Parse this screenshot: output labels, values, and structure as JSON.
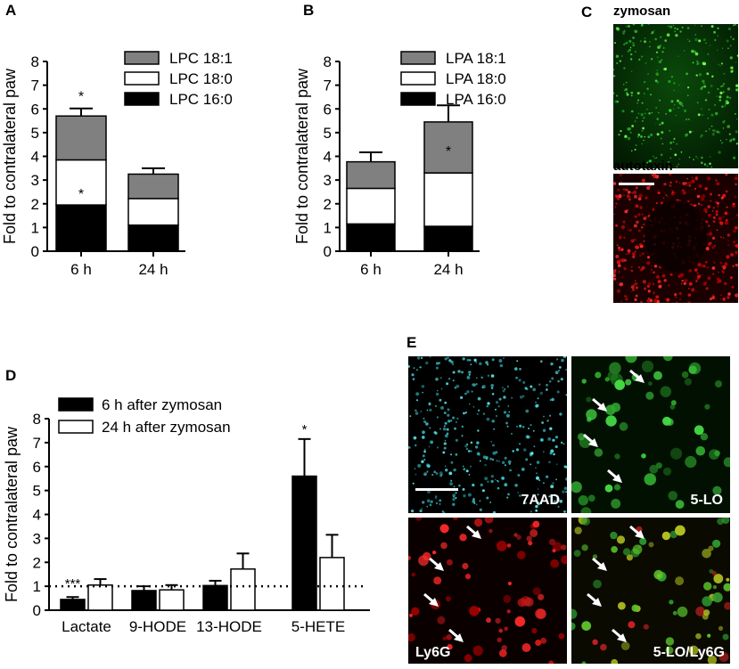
{
  "panels": {
    "a_letter": "A",
    "b_letter": "B",
    "c_letter": "C",
    "d_letter": "D",
    "e_letter": "E"
  },
  "chart_data": [
    {
      "panel": "A",
      "type": "bar",
      "stacked": true,
      "categories": [
        "6 h",
        "24 h"
      ],
      "series": [
        {
          "name": "LPC 16:0",
          "values": [
            1.95,
            1.1
          ],
          "errors": [
            0.35,
            0.12
          ],
          "color": "#000000"
        },
        {
          "name": "LPC 18:0",
          "values": [
            1.9,
            1.12
          ],
          "errors": [
            0.4,
            0.13
          ],
          "color": "#ffffff"
        },
        {
          "name": "LPC 18:1",
          "values": [
            1.85,
            1.03
          ],
          "errors": [
            0.32,
            0.25
          ],
          "color": "#808080"
        }
      ],
      "legend_order": [
        "LPC 18:1",
        "LPC 18:0",
        "LPC 16:0"
      ],
      "annotations": [
        {
          "text": "*",
          "category": "6 h",
          "at": 2.45
        },
        {
          "text": "*",
          "category": "6 h",
          "at": 6.55
        }
      ],
      "ylabel": "Fold to contralateral paw",
      "yticks": [
        0,
        1,
        2,
        3,
        4,
        5,
        6,
        7,
        8
      ],
      "ylim": [
        0,
        8
      ],
      "legend": "top-right"
    },
    {
      "panel": "B",
      "type": "bar",
      "stacked": true,
      "categories": [
        "6 h",
        "24 h"
      ],
      "series": [
        {
          "name": "LPA 16:0",
          "values": [
            1.15,
            1.05
          ],
          "errors": [
            0.28,
            0.2
          ],
          "color": "#000000"
        },
        {
          "name": "LPA 18:0",
          "values": [
            1.5,
            2.25
          ],
          "errors": [
            0.5,
            0.4
          ],
          "color": "#ffffff"
        },
        {
          "name": "LPA 18:1",
          "values": [
            1.12,
            2.15
          ],
          "errors": [
            0.4,
            0.7
          ],
          "color": "#808080"
        }
      ],
      "legend_order": [
        "LPA 18:1",
        "LPA 18:0",
        "LPA 16:0"
      ],
      "annotations": [
        {
          "text": "*",
          "category": "24 h",
          "at": 4.25
        }
      ],
      "ylabel": "Fold to contralateral paw",
      "yticks": [
        0,
        1,
        2,
        3,
        4,
        5,
        6,
        7,
        8
      ],
      "ylim": [
        0,
        8
      ],
      "legend": "top-right"
    },
    {
      "panel": "D",
      "type": "bar",
      "stacked": false,
      "categories": [
        "Lactate",
        "9-HODE",
        "13-HODE",
        "5-HETE"
      ],
      "series": [
        {
          "name": "6 h after zymosan",
          "values": [
            0.45,
            0.82,
            1.03,
            5.6
          ],
          "errors": [
            0.1,
            0.18,
            0.2,
            1.55
          ],
          "color": "#000000"
        },
        {
          "name": "24 h after zymosan",
          "values": [
            1.05,
            0.85,
            1.72,
            2.2
          ],
          "errors": [
            0.25,
            0.2,
            0.65,
            0.95
          ],
          "color": "#ffffff"
        }
      ],
      "annotations": [
        {
          "text": "***",
          "category": "Lactate",
          "at": 1.15
        },
        {
          "text": "*",
          "category": "5-HETE",
          "at": 7.6
        }
      ],
      "reference_line": 1,
      "ylabel": "Fold to contralateral paw",
      "yticks": [
        0,
        1,
        2,
        3,
        4,
        5,
        6,
        7,
        8
      ],
      "ylim": [
        0,
        8
      ],
      "legend": "top-left"
    }
  ],
  "images": {
    "c_top_label": "zymosan",
    "c_bottom_label": "autotaxin",
    "e_tl_label": "7AAD",
    "e_tr_label": "5-LO",
    "e_bl_label": "Ly6G",
    "e_br_label": "5-LO/Ly6G"
  }
}
